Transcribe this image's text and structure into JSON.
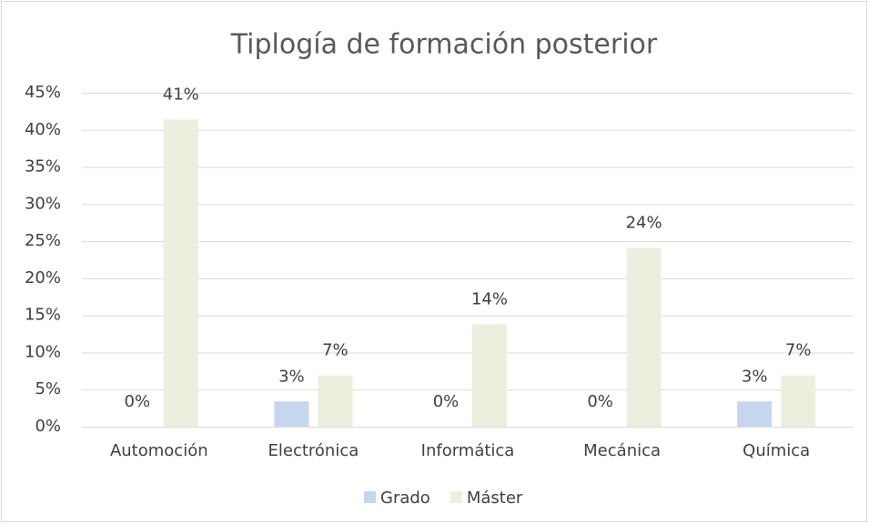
{
  "chart_data": {
    "type": "bar",
    "title": "Tiplogía de formación posterior",
    "categories": [
      "Automoción",
      "Electrónica",
      "Informática",
      "Mecánica",
      "Química"
    ],
    "series": [
      {
        "name": "Grado",
        "color": "#c6d6ef",
        "values": [
          0,
          3.4,
          0,
          0,
          3.4
        ],
        "value_labels": [
          "0%",
          "3%",
          "0%",
          "0%",
          "3%"
        ]
      },
      {
        "name": "Máster",
        "color": "#ebf0de",
        "values": [
          41.4,
          6.9,
          13.8,
          24.1,
          6.9
        ],
        "value_labels": [
          "41%",
          "7%",
          "14%",
          "24%",
          "7%"
        ]
      }
    ],
    "ylim": [
      0,
      45
    ],
    "yticks": [
      {
        "value": 0,
        "label": "0%"
      },
      {
        "value": 5,
        "label": "5%"
      },
      {
        "value": 10,
        "label": "10%"
      },
      {
        "value": 15,
        "label": "15%"
      },
      {
        "value": 20,
        "label": "20%"
      },
      {
        "value": 25,
        "label": "25%"
      },
      {
        "value": 30,
        "label": "30%"
      },
      {
        "value": 35,
        "label": "35%"
      },
      {
        "value": 40,
        "label": "40%"
      },
      {
        "value": 45,
        "label": "45%"
      }
    ],
    "grid": true,
    "legend": "bottom"
  }
}
